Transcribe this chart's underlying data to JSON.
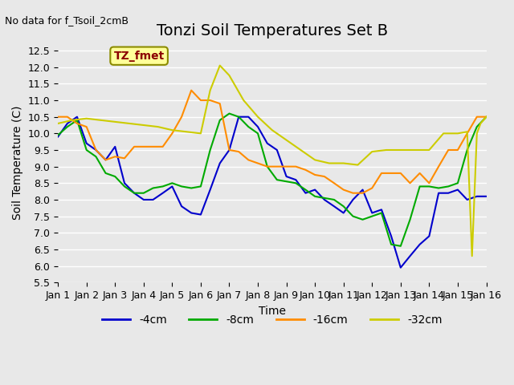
{
  "title": "Tonzi Soil Temperatures Set B",
  "subtitle": "No data for f_Tsoil_2cmB",
  "ylabel": "Soil Temperature (C)",
  "xlabel": "Time",
  "ylim": [
    5.5,
    12.75
  ],
  "xlim": [
    0,
    15
  ],
  "xtick_labels": [
    "Jan 1",
    "Jan 2",
    "Jan 3",
    "Jan 4",
    "Jan 5",
    "Jan 6",
    "Jan 7",
    "Jan 8",
    "Jan 9",
    "Jan 10",
    "Jan 11",
    "Jan 12",
    "Jan 13",
    "Jan 14",
    "Jan 15",
    "Jan 16"
  ],
  "ytick_values": [
    5.5,
    6.0,
    6.5,
    7.0,
    7.5,
    8.0,
    8.5,
    9.0,
    9.5,
    10.0,
    10.5,
    11.0,
    11.5,
    12.0,
    12.5
  ],
  "annotation_label": "TZ_fmet",
  "annotation_color": "#8B0000",
  "annotation_bg": "#FFFF99",
  "series": {
    "4cm": {
      "color": "#0000CC",
      "label": "-4cm",
      "x": [
        0,
        0.33,
        0.67,
        1.0,
        1.33,
        1.67,
        2.0,
        2.33,
        2.67,
        3.0,
        3.33,
        3.67,
        4.0,
        4.33,
        4.67,
        5.0,
        5.33,
        5.67,
        6.0,
        6.33,
        6.67,
        7.0,
        7.33,
        7.67,
        8.0,
        8.33,
        8.67,
        9.0,
        9.33,
        9.67,
        10.0,
        10.33,
        10.67,
        11.0,
        11.33,
        11.67,
        12.0,
        12.33,
        12.67,
        13.0,
        13.33,
        13.67,
        14.0,
        14.33,
        14.67,
        15.0
      ],
      "y": [
        9.9,
        10.3,
        10.5,
        9.7,
        9.5,
        9.2,
        9.6,
        8.5,
        8.2,
        8.0,
        8.0,
        8.2,
        8.4,
        7.8,
        7.6,
        7.55,
        8.3,
        9.1,
        9.5,
        10.5,
        10.5,
        10.2,
        9.7,
        9.5,
        8.7,
        8.6,
        8.2,
        8.3,
        8.0,
        7.8,
        7.6,
        8.0,
        8.3,
        7.6,
        7.7,
        6.9,
        5.95,
        6.3,
        6.65,
        6.9,
        8.2,
        8.2,
        8.3,
        8.0,
        8.1,
        8.1
      ]
    },
    "8cm": {
      "color": "#00AA00",
      "label": "-8cm",
      "x": [
        0,
        0.33,
        0.67,
        1.0,
        1.33,
        1.67,
        2.0,
        2.33,
        2.67,
        3.0,
        3.33,
        3.67,
        4.0,
        4.33,
        4.67,
        5.0,
        5.33,
        5.67,
        6.0,
        6.33,
        6.67,
        7.0,
        7.33,
        7.67,
        8.0,
        8.33,
        8.67,
        9.0,
        9.33,
        9.67,
        10.0,
        10.33,
        10.67,
        11.0,
        11.33,
        11.67,
        12.0,
        12.33,
        12.67,
        13.0,
        13.33,
        13.67,
        14.0,
        14.33,
        14.67,
        15.0
      ],
      "y": [
        9.95,
        10.2,
        10.4,
        9.5,
        9.3,
        8.8,
        8.7,
        8.4,
        8.2,
        8.2,
        8.35,
        8.4,
        8.5,
        8.4,
        8.35,
        8.4,
        9.5,
        10.4,
        10.6,
        10.5,
        10.2,
        10.0,
        9.0,
        8.6,
        8.55,
        8.5,
        8.3,
        8.1,
        8.05,
        8.0,
        7.8,
        7.5,
        7.4,
        7.5,
        7.6,
        6.65,
        6.6,
        7.4,
        8.4,
        8.4,
        8.35,
        8.4,
        8.5,
        9.5,
        10.2,
        10.5
      ]
    },
    "16cm": {
      "color": "#FF8C00",
      "label": "-16cm",
      "x": [
        0,
        0.33,
        0.67,
        1.0,
        1.33,
        1.67,
        2.0,
        2.33,
        2.67,
        3.0,
        3.33,
        3.67,
        4.0,
        4.33,
        4.67,
        5.0,
        5.33,
        5.67,
        6.0,
        6.33,
        6.67,
        7.0,
        7.33,
        7.67,
        8.0,
        8.33,
        8.67,
        9.0,
        9.33,
        9.67,
        10.0,
        10.33,
        10.67,
        11.0,
        11.33,
        11.67,
        12.0,
        12.33,
        12.67,
        13.0,
        13.33,
        13.67,
        14.0,
        14.33,
        14.67,
        15.0
      ],
      "y": [
        10.5,
        10.5,
        10.3,
        10.2,
        9.5,
        9.2,
        9.3,
        9.25,
        9.6,
        9.6,
        9.6,
        9.6,
        10.0,
        10.5,
        11.3,
        11.0,
        11.0,
        10.9,
        9.5,
        9.45,
        9.2,
        9.1,
        9.0,
        9.0,
        9.0,
        9.0,
        8.9,
        8.75,
        8.7,
        8.5,
        8.3,
        8.2,
        8.2,
        8.35,
        8.8,
        8.8,
        8.8,
        8.5,
        8.8,
        8.5,
        9.0,
        9.5,
        9.5,
        10.0,
        10.5,
        10.5
      ]
    },
    "32cm": {
      "color": "#CCCC00",
      "label": "-32cm",
      "x": [
        0,
        0.5,
        1.0,
        1.5,
        2.0,
        2.5,
        3.0,
        3.5,
        4.0,
        4.5,
        5.0,
        5.33,
        5.67,
        6.0,
        6.5,
        7.0,
        7.5,
        8.0,
        8.5,
        9.0,
        9.5,
        10.0,
        10.5,
        11.0,
        11.5,
        12.0,
        12.5,
        13.0,
        13.5,
        13.67,
        14.0,
        14.33,
        14.5,
        14.67,
        14.8,
        15.0
      ],
      "y": [
        10.3,
        10.4,
        10.45,
        10.4,
        10.35,
        10.3,
        10.25,
        10.2,
        10.1,
        10.05,
        10.0,
        11.3,
        12.05,
        11.75,
        11.0,
        10.5,
        10.1,
        9.8,
        9.5,
        9.2,
        9.1,
        9.1,
        9.05,
        9.45,
        9.5,
        9.5,
        9.5,
        9.5,
        10.0,
        10.0,
        10.0,
        10.05,
        6.3,
        10.0,
        10.3,
        10.5
      ]
    }
  },
  "background_color": "#E8E8E8",
  "plot_bg_color": "#E8E8E8",
  "grid_color": "#FFFFFF",
  "title_fontsize": 14,
  "label_fontsize": 10,
  "tick_fontsize": 9,
  "legend_fontsize": 10
}
